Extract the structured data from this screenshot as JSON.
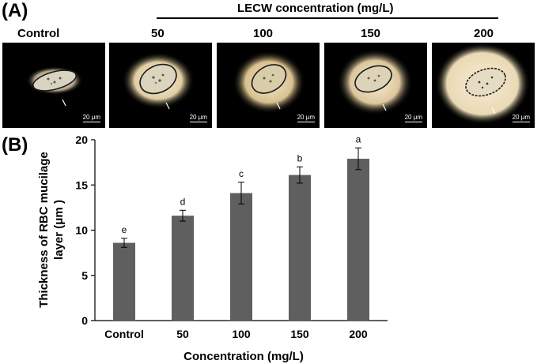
{
  "panel_a": {
    "label": "(A)",
    "header": "LECW concentration (mg/L)",
    "columns": [
      "Control",
      "50",
      "100",
      "150",
      "200"
    ],
    "scale_bar": "20 μm"
  },
  "panel_b": {
    "label": "(B)"
  },
  "colors": {
    "bar": "#5f5f5f",
    "axis": "#000000",
    "image_bg": "#000000"
  },
  "chart_data": {
    "type": "bar",
    "title": "",
    "categories": [
      "Control",
      "50",
      "100",
      "150",
      "200"
    ],
    "values": [
      8.6,
      11.6,
      14.1,
      16.1,
      17.9
    ],
    "errors": [
      0.5,
      0.6,
      1.2,
      0.9,
      1.2
    ],
    "letters": [
      "e",
      "d",
      "c",
      "b",
      "a"
    ],
    "xlabel": "Concentration (mg/L)",
    "ylabel_lines": [
      "Thickness of RBC mucilage",
      "layer (μm )"
    ],
    "ylim": [
      0,
      20
    ],
    "yticks": [
      0,
      5,
      10,
      15,
      20
    ],
    "grid": false,
    "legend": "none"
  }
}
